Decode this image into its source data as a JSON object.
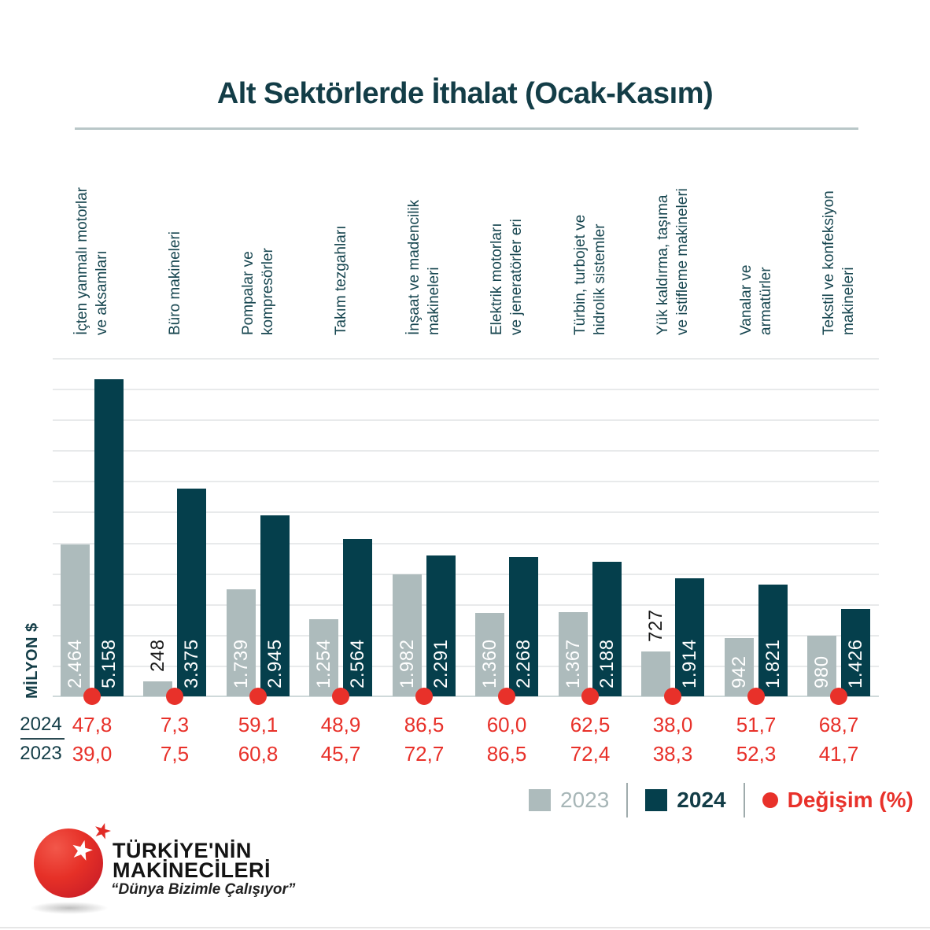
{
  "title": "Alt Sektörlerde İthalat (Ocak-Kasım)",
  "y_axis_label": "MİLYON $",
  "chart_data": {
    "type": "bar",
    "unit": "Milyon $",
    "title": "Alt Sektörlerde İthalat (Ocak-Kasım)",
    "grid": true,
    "ylim": [
      0,
      5500
    ],
    "gridline_step": 500,
    "legend_position": "bottom-right",
    "categories": [
      "İçten yanmalı motorlar ve aksamları",
      "Büro makineleri",
      "Pompalar ve kompresörler",
      "Takım tezgahları",
      "İnşaat ve madencilik makineleri",
      "Elektrik motorları ve jeneratörler eri",
      "Türbin, turbojet ve hidrolik sistemler",
      "Yük kaldırma, taşıma ve istifleme makineleri",
      "Vanalar ve armatürler",
      "Tekstil ve konfeksiyon makineleri"
    ],
    "category_lines": [
      [
        "İçten yanmalı motorlar",
        "ve aksamları"
      ],
      [
        "Büro makineleri"
      ],
      [
        "Pompalar ve",
        "kompresörler"
      ],
      [
        "Takım tezgahları"
      ],
      [
        "İnşaat ve madencilik",
        "makineleri"
      ],
      [
        "Elektrik motorları",
        "ve jeneratörler eri"
      ],
      [
        "Türbin, turbojet ve",
        "hidrolik sistemler"
      ],
      [
        "Yük kaldırma, taşıma",
        "ve istifleme makineleri"
      ],
      [
        "Vanalar ve",
        "armatürler"
      ],
      [
        "Tekstil ve konfeksiyon",
        "makineleri"
      ]
    ],
    "series": [
      {
        "name": "2023",
        "color": "#adbbbc",
        "values": [
          2464,
          248,
          1739,
          1254,
          1982,
          1360,
          1367,
          727,
          942,
          980
        ],
        "value_labels": [
          "2.464",
          "248",
          "1.739",
          "1.254",
          "1.982",
          "1.360",
          "1.367",
          "727",
          "942",
          "980"
        ]
      },
      {
        "name": "2024",
        "color": "#053f4c",
        "values": [
          5158,
          3375,
          2945,
          2564,
          2291,
          2268,
          2188,
          1914,
          1821,
          1426
        ],
        "value_labels": [
          "5.158",
          "3.375",
          "2.945",
          "2.564",
          "2.291",
          "2.268",
          "2.188",
          "1.914",
          "1.821",
          "1.426"
        ]
      }
    ],
    "change_pct": {
      "2024": [
        "47,8",
        "7,3",
        "59,1",
        "48,9",
        "86,5",
        "60,0",
        "62,5",
        "38,0",
        "51,7",
        "68,7"
      ],
      "2023": [
        "39,0",
        "7,5",
        "60,8",
        "45,7",
        "72,7",
        "86,5",
        "72,4",
        "38,3",
        "52,3",
        "41,7"
      ]
    }
  },
  "change_row_labels": {
    "row_2024": "2024",
    "row_2023": "2023"
  },
  "legend": {
    "label_2023": "2023",
    "label_2024": "2024",
    "label_change": "Değişim (%)"
  },
  "logo": {
    "name_line1": "TÜRKİYE'NİN",
    "name_line2": "MAKİNECİLERİ",
    "tagline": "“Dünya Bizimle Çalışıyor”"
  },
  "colors": {
    "dark": "#053f4c",
    "gray": "#adbbbc",
    "red": "#e8312a",
    "text_dark": "#133d47",
    "legend_gray_text": "#a7b6b7",
    "gridline": "#e8eaeb",
    "baseline": "#cfd9da",
    "title_rule": "#b9c7c8"
  }
}
